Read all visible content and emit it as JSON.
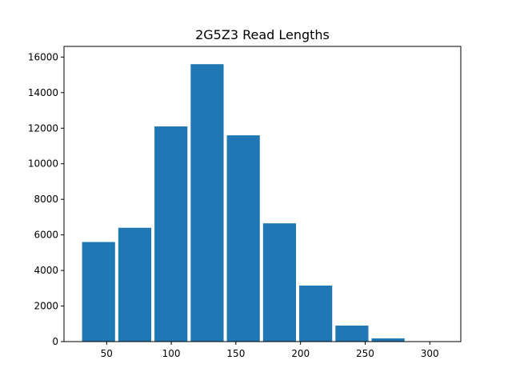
{
  "chart_data": {
    "type": "bar",
    "title": "2G5Z3 Read Lengths",
    "xlabel": "",
    "ylabel": "",
    "bins": [
      {
        "x0": 31.0,
        "x1": 56.5,
        "count": 5600
      },
      {
        "x0": 59.0,
        "x1": 84.5,
        "count": 6400
      },
      {
        "x0": 87.0,
        "x1": 112.5,
        "count": 12100
      },
      {
        "x0": 115.0,
        "x1": 140.5,
        "count": 15600
      },
      {
        "x0": 143.0,
        "x1": 168.5,
        "count": 11600
      },
      {
        "x0": 171.0,
        "x1": 196.5,
        "count": 6650
      },
      {
        "x0": 199.0,
        "x1": 224.5,
        "count": 3150
      },
      {
        "x0": 227.0,
        "x1": 252.5,
        "count": 900
      },
      {
        "x0": 255.0,
        "x1": 280.5,
        "count": 180
      },
      {
        "x0": 283.0,
        "x1": 308.5,
        "count": 20
      }
    ],
    "xlim": [
      17,
      324
    ],
    "ylim": [
      0,
      16600
    ],
    "xticks": [
      50,
      100,
      150,
      200,
      250,
      300
    ],
    "yticks": [
      0,
      2000,
      4000,
      6000,
      8000,
      10000,
      12000,
      14000,
      16000
    ],
    "bar_color": "#1f77b4",
    "grid": false,
    "legend": "none"
  }
}
